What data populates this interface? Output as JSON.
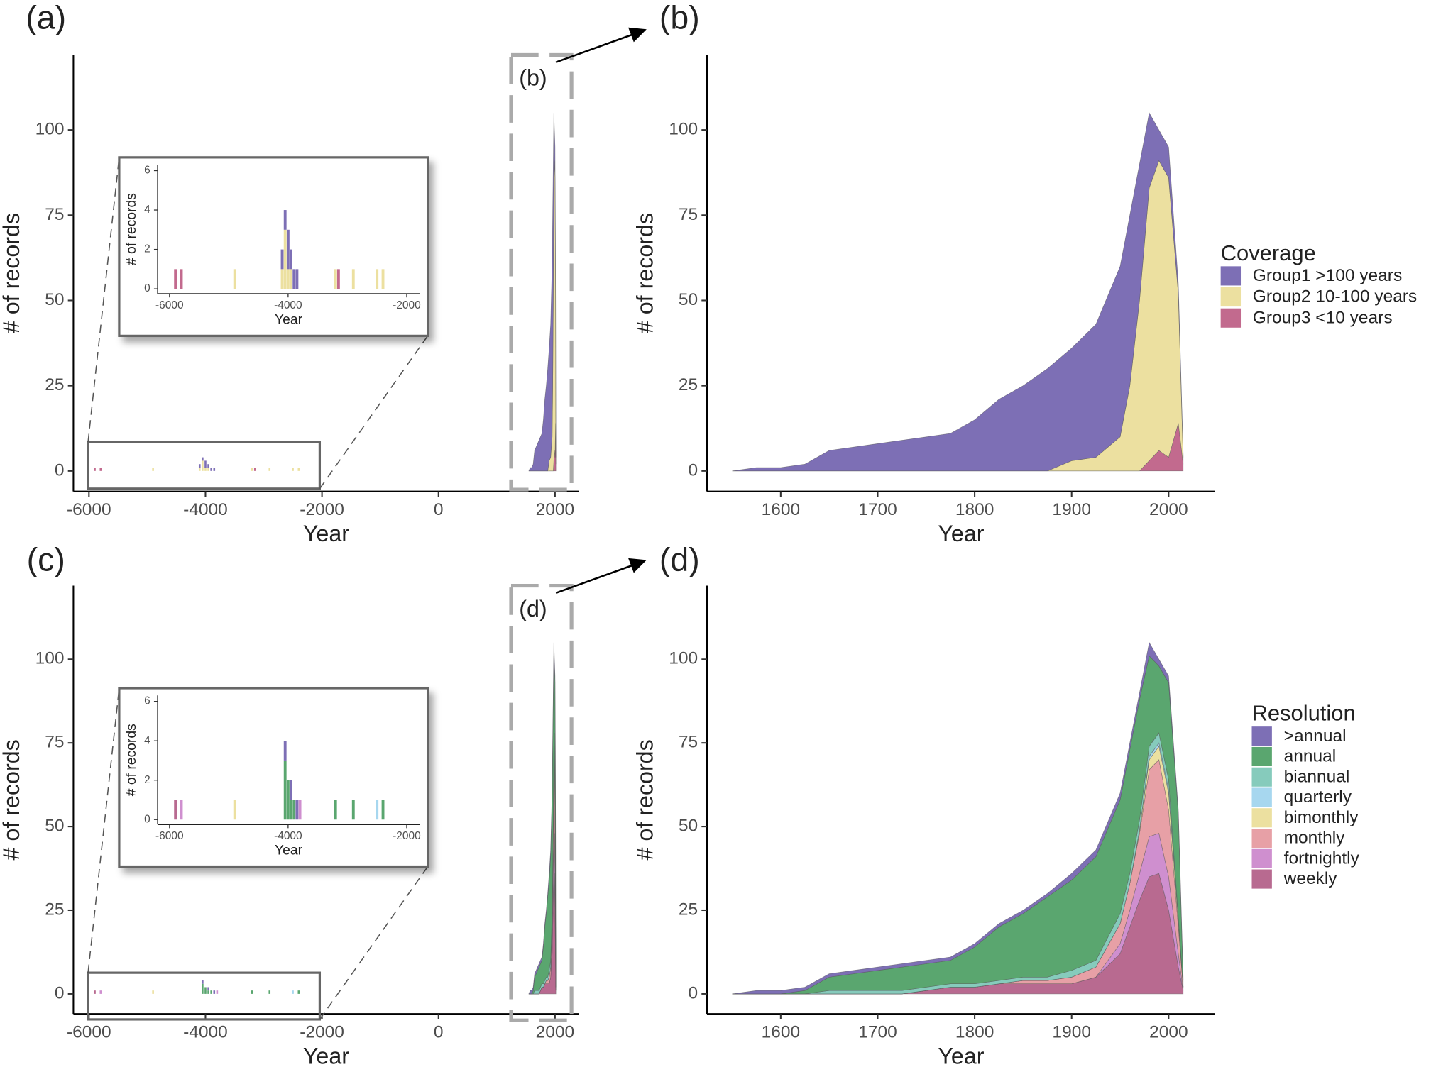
{
  "chart_data": [
    {
      "type": "overview",
      "panel_label": "(a)",
      "zoom_label": "(b)",
      "xlabel": "Year",
      "ylabel": "# of records",
      "xlim": [
        -6267,
        2409
      ],
      "xticks": [
        -6000,
        -4000,
        -2000,
        0,
        2000
      ],
      "ylim": [
        -6,
        122
      ],
      "yticks": [
        0,
        25,
        50,
        75,
        100
      ],
      "early": {
        "x": [
          -5900,
          -5800,
          -4900,
          -4100,
          -4050,
          -4000,
          -3950,
          -3900,
          -3850,
          -3200,
          -3150,
          -2900,
          -2500,
          -2400
        ],
        "series": [
          {
            "color": "#7d6fb5",
            "values": [
              0,
              0,
              0,
              1,
              1,
              2,
              1,
              1,
              1,
              0,
              0,
              0,
              0,
              0
            ]
          },
          {
            "color": "#ece0a0",
            "values": [
              0,
              0,
              1,
              1,
              3,
              1,
              1,
              0,
              0,
              1,
              0,
              1,
              1,
              1
            ]
          },
          {
            "color": "#c26a8e",
            "values": [
              1,
              1,
              0,
              0,
              0,
              0,
              0,
              0,
              0,
              0,
              1,
              0,
              0,
              0
            ]
          }
        ]
      },
      "inset": {
        "xlabel": "Year",
        "ylabel": "# of records",
        "xlim": [
          -6200,
          -1784
        ],
        "xticks": [
          -6000,
          -4000,
          -2000
        ],
        "ylim": [
          -0.25,
          6.3
        ],
        "yticks": [
          0,
          2,
          4,
          6
        ]
      }
    },
    {
      "type": "area",
      "panel_label": "(b)",
      "xlabel": "Year",
      "ylabel": "# of records",
      "legend_title": "Coverage",
      "legend": "right",
      "xlim": [
        1524,
        2048
      ],
      "xticks": [
        1600,
        1700,
        1800,
        1900,
        2000
      ],
      "ylim": [
        -6,
        122
      ],
      "yticks": [
        0,
        25,
        50,
        75,
        100
      ],
      "x": [
        1550,
        1575,
        1600,
        1625,
        1650,
        1675,
        1700,
        1725,
        1750,
        1775,
        1800,
        1825,
        1850,
        1875,
        1900,
        1925,
        1950,
        1960,
        1970,
        1980,
        1990,
        2000,
        2010,
        2015
      ],
      "series": [
        {
          "name": "Group1 >100 years",
          "color": "#7d6fb5",
          "values": [
            0,
            1,
            1,
            2,
            6,
            7,
            8,
            9,
            10,
            11,
            15,
            21,
            25,
            30,
            33,
            39,
            50,
            50,
            40,
            22,
            9,
            9,
            3,
            1
          ]
        },
        {
          "name": "Group2 10-100 years",
          "color": "#ece0a0",
          "values": [
            0,
            0,
            0,
            0,
            0,
            0,
            0,
            0,
            0,
            0,
            0,
            0,
            0,
            0,
            3,
            4,
            10,
            25,
            50,
            80,
            85,
            82,
            38,
            2
          ]
        },
        {
          "name": "Group3 <10 years",
          "color": "#c26a8e",
          "values": [
            0,
            0,
            0,
            0,
            0,
            0,
            0,
            0,
            0,
            0,
            0,
            0,
            0,
            0,
            0,
            0,
            0,
            0,
            0,
            3,
            6,
            4,
            14,
            2
          ]
        }
      ]
    },
    {
      "type": "overview",
      "panel_label": "(c)",
      "zoom_label": "(d)",
      "xlabel": "Year",
      "ylabel": "# of records",
      "xlim": [
        -6267,
        2409
      ],
      "xticks": [
        -6000,
        -4000,
        -2000,
        0,
        2000
      ],
      "ylim": [
        -6,
        122
      ],
      "yticks": [
        0,
        25,
        50,
        75,
        100
      ],
      "early": {
        "x": [
          -5900,
          -5800,
          -4900,
          -4050,
          -4000,
          -3950,
          -3900,
          -3850,
          -3800,
          -3200,
          -2900,
          -2500,
          -2400
        ],
        "series": [
          {
            "color": "#7d6fb5",
            "values": [
              0,
              0,
              0,
              1,
              0,
              1,
              0,
              1,
              0,
              0,
              0,
              0,
              0
            ]
          },
          {
            "color": "#5aa66f",
            "values": [
              0,
              0,
              0,
              3,
              2,
              1,
              1,
              0,
              0,
              1,
              1,
              0,
              1
            ]
          },
          {
            "color": "#86cbbc",
            "values": [
              0,
              0,
              0,
              0,
              0,
              0,
              0,
              0,
              0,
              0,
              0,
              0,
              0
            ]
          },
          {
            "color": "#a7d7ef",
            "values": [
              0,
              0,
              0,
              0,
              0,
              0,
              0,
              0,
              0,
              0,
              0,
              1,
              0
            ]
          },
          {
            "color": "#ece0a0",
            "values": [
              0,
              0,
              1,
              0,
              0,
              0,
              0,
              0,
              0,
              0,
              0,
              0,
              0
            ]
          },
          {
            "color": "#e7a0a6",
            "values": [
              0,
              0,
              0,
              0,
              0,
              0,
              0,
              0,
              0,
              0,
              0,
              0,
              0
            ]
          },
          {
            "color": "#cf8fcf",
            "values": [
              0,
              1,
              0,
              0,
              0,
              0,
              0,
              0,
              1,
              0,
              0,
              0,
              0
            ]
          },
          {
            "color": "#b86a90",
            "values": [
              1,
              0,
              0,
              0,
              0,
              0,
              0,
              0,
              0,
              0,
              0,
              0,
              0
            ]
          }
        ]
      },
      "inset": {
        "xlabel": "Year",
        "ylabel": "# of records",
        "xlim": [
          -6200,
          -1784
        ],
        "xticks": [
          -6000,
          -4000,
          -2000
        ],
        "ylim": [
          -0.25,
          6.3
        ],
        "yticks": [
          0,
          2,
          4,
          6
        ]
      }
    },
    {
      "type": "area",
      "panel_label": "(d)",
      "xlabel": "Year",
      "ylabel": "# of records",
      "legend_title": "Resolution",
      "legend": "right",
      "xlim": [
        1524,
        2048
      ],
      "xticks": [
        1600,
        1700,
        1800,
        1900,
        2000
      ],
      "ylim": [
        -6,
        122
      ],
      "yticks": [
        0,
        25,
        50,
        75,
        100
      ],
      "x": [
        1550,
        1575,
        1600,
        1625,
        1650,
        1675,
        1700,
        1725,
        1750,
        1775,
        1800,
        1825,
        1850,
        1875,
        1900,
        1925,
        1950,
        1960,
        1970,
        1980,
        1990,
        2000,
        2010,
        2015
      ],
      "series": [
        {
          "name": ">annual",
          "color": "#7d6fb5",
          "values": [
            0,
            1,
            1,
            1,
            1,
            1,
            1,
            1,
            1,
            1,
            1,
            1,
            1,
            1,
            2,
            2,
            2,
            2,
            2,
            4,
            2,
            2,
            1,
            1
          ]
        },
        {
          "name": "annual",
          "color": "#5aa66f",
          "values": [
            0,
            0,
            0,
            1,
            4,
            5,
            6,
            7,
            7,
            7,
            11,
            16,
            19,
            24,
            27,
            31,
            34,
            37,
            36,
            27,
            20,
            29,
            31,
            2
          ]
        },
        {
          "name": "biannual",
          "color": "#86cbbc",
          "values": [
            0,
            0,
            0,
            0,
            1,
            1,
            1,
            1,
            1,
            1,
            1,
            1,
            1,
            1,
            2,
            2,
            3,
            3,
            3,
            3,
            3,
            3,
            1,
            0
          ]
        },
        {
          "name": "quarterly",
          "color": "#a7d7ef",
          "values": [
            0,
            0,
            0,
            0,
            0,
            0,
            0,
            0,
            0,
            0,
            0,
            0,
            0,
            0,
            0,
            0,
            0,
            0,
            0,
            1,
            1,
            1,
            0,
            0
          ]
        },
        {
          "name": "bimonthly",
          "color": "#ece0a0",
          "values": [
            0,
            0,
            0,
            0,
            0,
            0,
            0,
            0,
            0,
            0,
            0,
            0,
            0,
            0,
            0,
            0,
            0,
            0,
            1,
            3,
            4,
            5,
            2,
            0
          ]
        },
        {
          "name": "monthly",
          "color": "#e7a0a6",
          "values": [
            0,
            0,
            0,
            0,
            0,
            0,
            0,
            0,
            0,
            0,
            0,
            0,
            1,
            1,
            2,
            3,
            6,
            8,
            12,
            20,
            22,
            20,
            8,
            1
          ]
        },
        {
          "name": "fortnightly",
          "color": "#cf8fcf",
          "values": [
            0,
            0,
            0,
            0,
            0,
            0,
            0,
            0,
            0,
            0,
            0,
            0,
            0,
            0,
            0,
            0,
            3,
            5,
            8,
            12,
            12,
            10,
            4,
            0
          ]
        },
        {
          "name": "weekly",
          "color": "#b86a90",
          "values": [
            0,
            0,
            0,
            0,
            0,
            0,
            0,
            0,
            1,
            2,
            2,
            3,
            3,
            3,
            3,
            5,
            12,
            20,
            28,
            35,
            36,
            25,
            8,
            1
          ]
        }
      ]
    }
  ]
}
